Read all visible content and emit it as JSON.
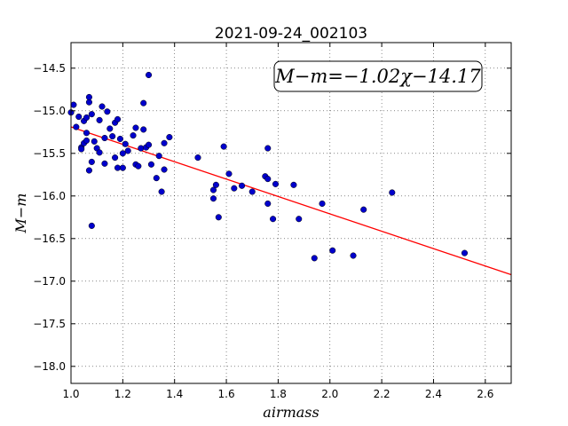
{
  "chart_data": {
    "type": "scatter",
    "title": "2021-09-24_002103",
    "xlabel": "airmass",
    "ylabel": "M−m",
    "xlim": [
      1.0,
      2.7
    ],
    "ylim": [
      -18.2,
      -14.2
    ],
    "y_inverted": true,
    "xticks": [
      "1.0",
      "1.2",
      "1.4",
      "1.6",
      "1.8",
      "2.0",
      "2.2",
      "2.4",
      "2.6"
    ],
    "yticks": [
      "−14.5",
      "−15.0",
      "−15.5",
      "−16.0",
      "−16.5",
      "−17.0",
      "−17.5",
      "−18.0"
    ],
    "grid": true,
    "annotation": "M−m=−1.02χ−14.17",
    "fit": {
      "slope": -1.02,
      "intercept": -14.17,
      "color": "#ff0000"
    },
    "point_color": "#0000cc",
    "points": [
      [
        1.0,
        -15.02
      ],
      [
        1.01,
        -14.93
      ],
      [
        1.02,
        -15.19
      ],
      [
        1.03,
        -15.07
      ],
      [
        1.04,
        -15.43
      ],
      [
        1.04,
        -15.45
      ],
      [
        1.05,
        -15.12
      ],
      [
        1.05,
        -15.38
      ],
      [
        1.06,
        -15.26
      ],
      [
        1.06,
        -15.08
      ],
      [
        1.07,
        -14.9
      ],
      [
        1.07,
        -14.84
      ],
      [
        1.06,
        -15.35
      ],
      [
        1.07,
        -15.7
      ],
      [
        1.08,
        -15.6
      ],
      [
        1.08,
        -16.35
      ],
      [
        1.08,
        -15.04
      ],
      [
        1.09,
        -15.36
      ],
      [
        1.1,
        -15.44
      ],
      [
        1.11,
        -15.49
      ],
      [
        1.11,
        -15.11
      ],
      [
        1.12,
        -14.95
      ],
      [
        1.13,
        -15.62
      ],
      [
        1.13,
        -15.32
      ],
      [
        1.14,
        -15.01
      ],
      [
        1.15,
        -15.21
      ],
      [
        1.16,
        -15.3
      ],
      [
        1.17,
        -15.55
      ],
      [
        1.17,
        -15.14
      ],
      [
        1.18,
        -15.1
      ],
      [
        1.18,
        -15.67
      ],
      [
        1.19,
        -15.33
      ],
      [
        1.2,
        -15.67
      ],
      [
        1.2,
        -15.5
      ],
      [
        1.21,
        -15.39
      ],
      [
        1.22,
        -15.47
      ],
      [
        1.24,
        -15.29
      ],
      [
        1.25,
        -15.2
      ],
      [
        1.25,
        -15.63
      ],
      [
        1.26,
        -15.65
      ],
      [
        1.27,
        -15.44
      ],
      [
        1.28,
        -15.22
      ],
      [
        1.28,
        -14.91
      ],
      [
        1.29,
        -15.43
      ],
      [
        1.3,
        -14.58
      ],
      [
        1.3,
        -15.4
      ],
      [
        1.31,
        -15.63
      ],
      [
        1.33,
        -15.79
      ],
      [
        1.34,
        -15.53
      ],
      [
        1.35,
        -15.95
      ],
      [
        1.36,
        -15.69
      ],
      [
        1.36,
        -15.38
      ],
      [
        1.38,
        -15.31
      ],
      [
        1.49,
        -15.55
      ],
      [
        1.55,
        -16.03
      ],
      [
        1.55,
        -15.93
      ],
      [
        1.56,
        -15.87
      ],
      [
        1.57,
        -16.25
      ],
      [
        1.59,
        -15.42
      ],
      [
        1.61,
        -15.74
      ],
      [
        1.63,
        -15.91
      ],
      [
        1.66,
        -15.88
      ],
      [
        1.7,
        -15.95
      ],
      [
        1.75,
        -15.77
      ],
      [
        1.76,
        -15.8
      ],
      [
        1.76,
        -16.09
      ],
      [
        1.76,
        -15.44
      ],
      [
        1.78,
        -16.27
      ],
      [
        1.79,
        -15.86
      ],
      [
        1.86,
        -15.87
      ],
      [
        1.88,
        -16.27
      ],
      [
        1.94,
        -16.73
      ],
      [
        1.97,
        -16.09
      ],
      [
        2.01,
        -16.64
      ],
      [
        2.09,
        -16.7
      ],
      [
        2.13,
        -16.16
      ],
      [
        2.24,
        -15.96
      ],
      [
        2.52,
        -16.67
      ]
    ]
  }
}
